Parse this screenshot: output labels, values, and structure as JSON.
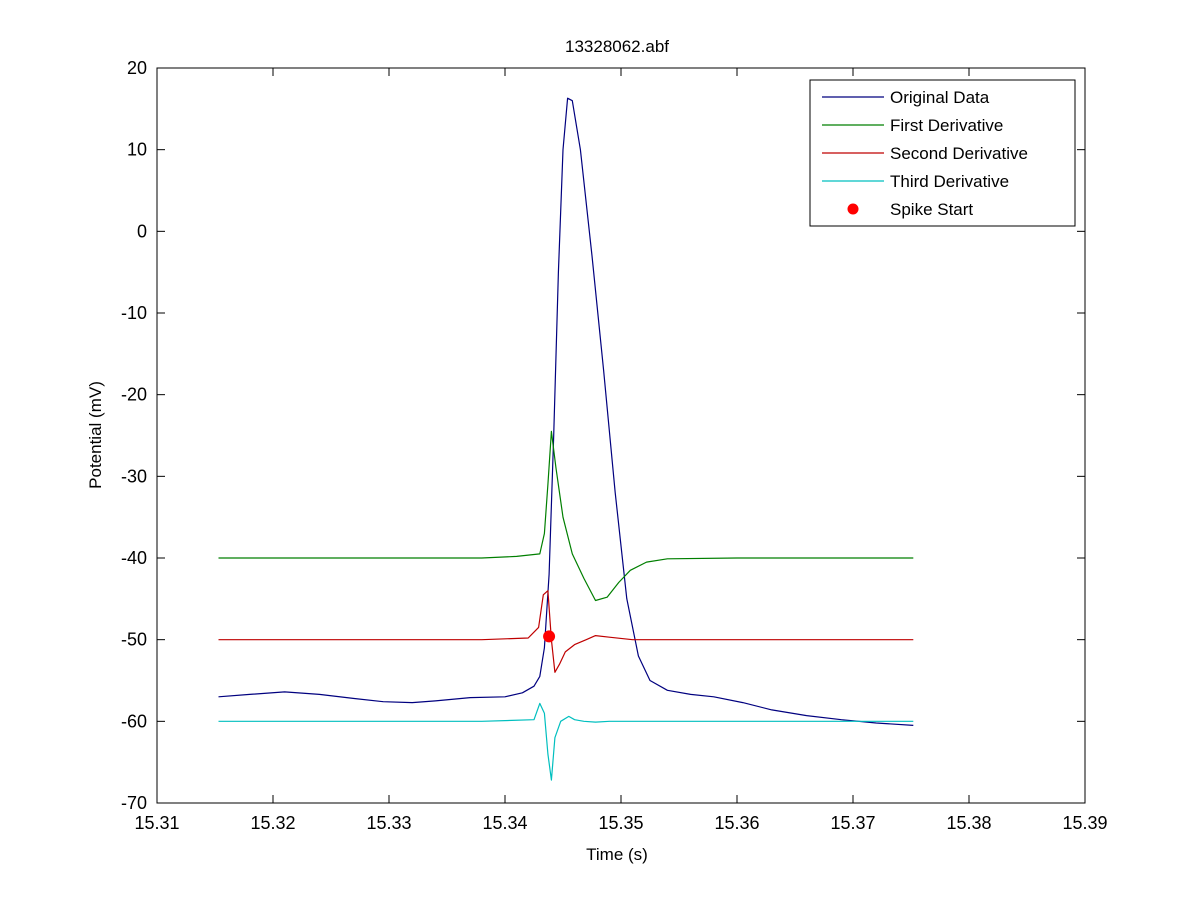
{
  "chart_data": {
    "type": "line",
    "title": "13328062.abf",
    "xlabel": "Time (s)",
    "ylabel": "Potential (mV)",
    "xlim": [
      15.31,
      15.39
    ],
    "ylim": [
      -70,
      20
    ],
    "xticks": [
      15.31,
      15.32,
      15.33,
      15.34,
      15.35,
      15.36,
      15.37,
      15.38,
      15.39
    ],
    "xtick_labels": [
      "15.31",
      "15.32",
      "15.33",
      "15.34",
      "15.35",
      "15.36",
      "15.37",
      "15.38",
      "15.39"
    ],
    "yticks": [
      20,
      10,
      0,
      -10,
      -20,
      -30,
      -40,
      -50,
      -60,
      -70
    ],
    "ytick_labels": [
      "20",
      "10",
      "0",
      "-10",
      "-20",
      "-30",
      "-40",
      "-50",
      "-60",
      "-70"
    ],
    "grid": false,
    "legend_position": "top-right",
    "series": [
      {
        "name": "Original Data",
        "color": "#00007f",
        "style": "line",
        "x": [
          15.3153,
          15.318,
          15.321,
          15.324,
          15.327,
          15.3295,
          15.332,
          15.334,
          15.337,
          15.34,
          15.3415,
          15.3425,
          15.343,
          15.3434,
          15.3438,
          15.3442,
          15.3446,
          15.345,
          15.3454,
          15.3458,
          15.3465,
          15.3475,
          15.3485,
          15.3495,
          15.3505,
          15.3515,
          15.3525,
          15.354,
          15.356,
          15.358,
          15.3605,
          15.363,
          15.366,
          15.369,
          15.372,
          15.3752
        ],
        "y": [
          -57,
          -56.7,
          -56.4,
          -56.7,
          -57.2,
          -57.6,
          -57.7,
          -57.5,
          -57.1,
          -57,
          -56.5,
          -55.7,
          -54.5,
          -51,
          -42,
          -25,
          -5,
          10,
          16.3,
          16,
          10,
          -3,
          -17,
          -32,
          -45,
          -52,
          -55,
          -56.2,
          -56.7,
          -57,
          -57.7,
          -58.6,
          -59.3,
          -59.8,
          -60.2,
          -60.5
        ]
      },
      {
        "name": "First Derivative",
        "color": "#007f00",
        "style": "line",
        "x": [
          15.3153,
          15.322,
          15.33,
          15.338,
          15.341,
          15.343,
          15.3434,
          15.3437,
          15.344,
          15.3444,
          15.345,
          15.3458,
          15.3468,
          15.3478,
          15.3488,
          15.3498,
          15.3508,
          15.3522,
          15.354,
          15.36,
          15.368,
          15.3752
        ],
        "y": [
          -40,
          -40,
          -40,
          -40,
          -39.8,
          -39.5,
          -37,
          -31,
          -24.5,
          -29,
          -35,
          -39.5,
          -42.5,
          -45.2,
          -44.8,
          -43,
          -41.5,
          -40.5,
          -40.1,
          -40,
          -40,
          -40
        ]
      },
      {
        "name": "Second Derivative",
        "color": "#bf0000",
        "style": "line",
        "x": [
          15.3153,
          15.322,
          15.33,
          15.338,
          15.342,
          15.3429,
          15.3433,
          15.3437,
          15.344,
          15.3443,
          15.3447,
          15.3452,
          15.346,
          15.347,
          15.3478,
          15.349,
          15.351,
          15.355,
          15.365,
          15.3752
        ],
        "y": [
          -50,
          -50,
          -50,
          -50,
          -49.8,
          -48.5,
          -44.5,
          -44,
          -50,
          -54,
          -53,
          -51.5,
          -50.6,
          -50,
          -49.5,
          -49.7,
          -50,
          -50,
          -50,
          -50
        ]
      },
      {
        "name": "Third Derivative",
        "color": "#00bfbf",
        "style": "line",
        "x": [
          15.3153,
          15.322,
          15.33,
          15.338,
          15.3425,
          15.343,
          15.3434,
          15.3437,
          15.344,
          15.3443,
          15.3448,
          15.3455,
          15.346,
          15.3468,
          15.3478,
          15.349,
          15.355,
          15.365,
          15.3752
        ],
        "y": [
          -60,
          -60,
          -60,
          -60,
          -59.8,
          -57.8,
          -59,
          -64,
          -67.2,
          -62,
          -60,
          -59.4,
          -59.8,
          -60,
          -60.1,
          -60,
          -60,
          -60,
          -60
        ]
      },
      {
        "name": "Spike Start",
        "color": "#ff0000",
        "style": "marker",
        "x": [
          15.3438
        ],
        "y": [
          -49.6
        ]
      }
    ]
  }
}
